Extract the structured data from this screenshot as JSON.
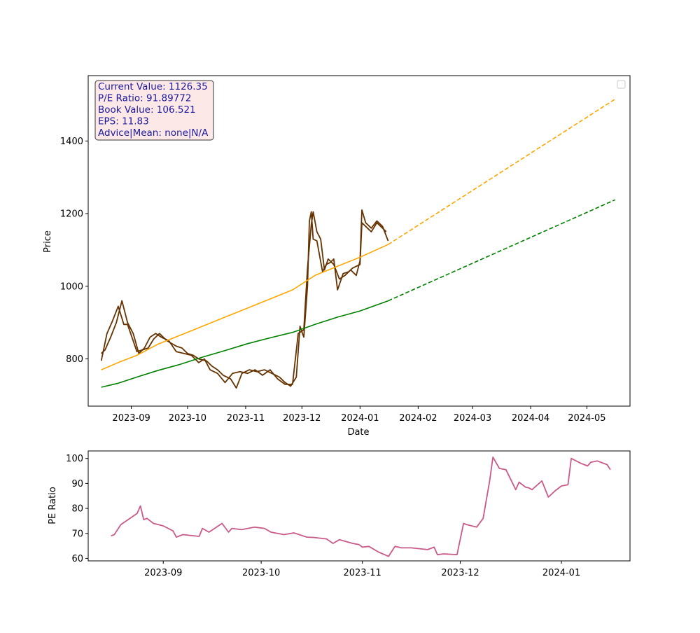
{
  "chart_data": [
    {
      "type": "line",
      "title": "",
      "xlabel": "Date",
      "ylabel": "Price",
      "xlim": [
        "2023-08-09",
        "2024-05-24"
      ],
      "ylim": [
        670,
        1580
      ],
      "grid": false,
      "legend": "top-right",
      "x_tick_labels": [
        "2023-09",
        "2023-10",
        "2023-11",
        "2023-12",
        "2024-01",
        "2024-02",
        "2024-03",
        "2024-04",
        "2024-05"
      ],
      "y_tick_labels": [
        "800",
        "1000",
        "1200",
        "1400"
      ],
      "y_ticks": [
        800,
        1000,
        1200,
        1400
      ],
      "info_box": [
        "Current Value: 1126.35",
        "P/E Ratio: 91.89772",
        "Book Value: 106.521",
        "EPS: 11.83",
        "Advice|Mean: none|N/A"
      ],
      "colors": {
        "price": "#663300",
        "upper_trend": "#ffa500",
        "lower_trend": "#008000",
        "info_box_fill": "#fde8e8",
        "info_box_border": "#333333"
      },
      "series": [
        {
          "key": "price_a",
          "x": [
            "2023-08-16",
            "2023-08-19",
            "2023-08-22",
            "2023-08-25",
            "2023-08-28",
            "2023-08-30",
            "2023-09-01",
            "2023-09-04",
            "2023-09-07",
            "2023-09-10",
            "2023-09-13",
            "2023-09-16",
            "2023-09-20",
            "2023-09-25",
            "2023-09-28",
            "2023-10-01",
            "2023-10-04",
            "2023-10-07",
            "2023-10-11",
            "2023-10-14",
            "2023-10-17",
            "2023-10-20",
            "2023-10-24",
            "2023-10-27",
            "2023-10-30",
            "2023-11-03",
            "2023-11-07",
            "2023-11-11",
            "2023-11-15",
            "2023-11-19",
            "2023-11-22",
            "2023-11-25",
            "2023-11-28",
            "2023-11-30",
            "2023-12-02",
            "2023-12-04",
            "2023-12-05",
            "2023-12-06",
            "2023-12-07",
            "2023-12-09",
            "2023-12-12",
            "2023-12-14",
            "2023-12-16",
            "2023-12-18",
            "2023-12-20",
            "2023-12-23",
            "2023-12-26",
            "2023-12-28",
            "2024-01-01",
            "2024-01-02",
            "2024-01-04",
            "2024-01-07",
            "2024-01-10",
            "2024-01-13",
            "2024-01-15"
          ],
          "y": [
            795,
            870,
            905,
            945,
            895,
            895,
            865,
            820,
            825,
            830,
            855,
            870,
            850,
            835,
            830,
            815,
            810,
            800,
            795,
            780,
            770,
            755,
            745,
            720,
            760,
            770,
            765,
            770,
            760,
            750,
            735,
            725,
            750,
            890,
            860,
            1000,
            1180,
            1205,
            1130,
            1125,
            1040,
            1060,
            1065,
            1075,
            990,
            1035,
            1040,
            1050,
            1060,
            1175,
            1165,
            1150,
            1175,
            1160,
            1150
          ]
        },
        {
          "key": "price_b",
          "x": [
            "2023-08-16",
            "2023-08-18",
            "2023-08-21",
            "2023-08-24",
            "2023-08-27",
            "2023-08-30",
            "2023-09-02",
            "2023-09-05",
            "2023-09-08",
            "2023-09-11",
            "2023-09-14",
            "2023-09-17",
            "2023-09-21",
            "2023-09-25",
            "2023-09-29",
            "2023-10-03",
            "2023-10-07",
            "2023-10-10",
            "2023-10-13",
            "2023-10-17",
            "2023-10-21",
            "2023-10-25",
            "2023-10-29",
            "2023-11-02",
            "2023-11-06",
            "2023-11-10",
            "2023-11-14",
            "2023-11-18",
            "2023-11-22",
            "2023-11-26",
            "2023-11-29",
            "2023-12-02",
            "2023-12-04",
            "2023-12-06",
            "2023-12-07",
            "2023-12-09",
            "2023-12-11",
            "2023-12-13",
            "2023-12-15",
            "2023-12-18",
            "2023-12-21",
            "2023-12-24",
            "2023-12-27",
            "2023-12-30",
            "2024-01-01",
            "2024-01-02",
            "2024-01-04",
            "2024-01-07",
            "2024-01-10",
            "2024-01-13",
            "2024-01-16"
          ],
          "y": [
            815,
            825,
            860,
            900,
            960,
            900,
            870,
            815,
            830,
            860,
            870,
            860,
            850,
            820,
            815,
            810,
            790,
            800,
            770,
            760,
            735,
            760,
            765,
            760,
            770,
            755,
            770,
            745,
            730,
            730,
            870,
            880,
            1050,
            1170,
            1205,
            1150,
            1130,
            1045,
            1075,
            1060,
            1020,
            1030,
            1045,
            1030,
            1070,
            1210,
            1175,
            1160,
            1180,
            1165,
            1125
          ]
        },
        {
          "key": "upper_trend",
          "x": [
            "2023-08-16",
            "2023-08-25",
            "2023-09-04",
            "2023-09-15",
            "2023-09-27",
            "2023-10-09",
            "2023-10-21",
            "2023-11-02",
            "2023-11-14",
            "2023-11-26",
            "2023-12-08",
            "2023-12-20",
            "2024-01-01",
            "2024-01-16"
          ],
          "y": [
            770,
            790,
            810,
            840,
            865,
            890,
            915,
            940,
            965,
            990,
            1030,
            1055,
            1080,
            1115
          ]
        },
        {
          "key": "upper_projection",
          "x": [
            "2024-01-16",
            "2024-05-16"
          ],
          "y": [
            1115,
            1515
          ]
        },
        {
          "key": "lower_trend",
          "x": [
            "2023-08-16",
            "2023-08-25",
            "2023-09-04",
            "2023-09-15",
            "2023-09-27",
            "2023-10-09",
            "2023-10-21",
            "2023-11-02",
            "2023-11-14",
            "2023-11-26",
            "2023-12-08",
            "2023-12-20",
            "2024-01-01",
            "2024-01-16"
          ],
          "y": [
            722,
            733,
            750,
            768,
            785,
            805,
            823,
            842,
            858,
            873,
            895,
            915,
            932,
            960
          ]
        },
        {
          "key": "lower_projection",
          "x": [
            "2024-01-16",
            "2024-05-16"
          ],
          "y": [
            960,
            1238
          ]
        }
      ]
    },
    {
      "type": "line",
      "title": "",
      "xlabel": "",
      "ylabel": "PE Ratio",
      "xlim": [
        "2023-08-09",
        "2024-01-22"
      ],
      "ylim": [
        59,
        103
      ],
      "grid": false,
      "x_tick_labels": [
        "2023-09",
        "2023-10",
        "2023-11",
        "2023-12",
        "2024-01"
      ],
      "y_tick_labels": [
        "60",
        "70",
        "80",
        "90",
        "100"
      ],
      "y_ticks": [
        60,
        70,
        80,
        90,
        100
      ],
      "colors": {
        "line": "#c95a8a"
      },
      "series": [
        {
          "key": "pe_ratio",
          "x": [
            "2023-08-16",
            "2023-08-17",
            "2023-08-19",
            "2023-08-24",
            "2023-08-25",
            "2023-08-26",
            "2023-08-27",
            "2023-08-29",
            "2023-09-01",
            "2023-09-04",
            "2023-09-05",
            "2023-09-07",
            "2023-09-12",
            "2023-09-13",
            "2023-09-15",
            "2023-09-19",
            "2023-09-21",
            "2023-09-22",
            "2023-09-25",
            "2023-09-29",
            "2023-10-02",
            "2023-10-04",
            "2023-10-08",
            "2023-10-11",
            "2023-10-15",
            "2023-10-17",
            "2023-10-21",
            "2023-10-23",
            "2023-10-25",
            "2023-10-29",
            "2023-10-31",
            "2023-11-01",
            "2023-11-03",
            "2023-11-06",
            "2023-11-09",
            "2023-11-11",
            "2023-11-13",
            "2023-11-16",
            "2023-11-21",
            "2023-11-23",
            "2023-11-24",
            "2023-11-26",
            "2023-11-30",
            "2023-12-02",
            "2023-12-03",
            "2023-12-06",
            "2023-12-08",
            "2023-12-10",
            "2023-12-11",
            "2023-12-13",
            "2023-12-15",
            "2023-12-18",
            "2023-12-19",
            "2023-12-21",
            "2023-12-22",
            "2023-12-23",
            "2023-12-26",
            "2023-12-28",
            "2023-12-30",
            "2024-01-01",
            "2024-01-03",
            "2024-01-04",
            "2024-01-07",
            "2024-01-09",
            "2024-01-10",
            "2024-01-12",
            "2024-01-15",
            "2024-01-16"
          ],
          "y": [
            69,
            69.5,
            73.5,
            78,
            81,
            75.5,
            76,
            74,
            73,
            71,
            68.5,
            69.5,
            68.8,
            72,
            70.5,
            74,
            70.5,
            72,
            71.5,
            72.5,
            72,
            70.5,
            69.5,
            70.2,
            68.5,
            68.4,
            67.8,
            66,
            67.5,
            66,
            65.5,
            64.5,
            64.8,
            62.5,
            60.8,
            64.8,
            64.2,
            64.2,
            63.5,
            64.5,
            61.5,
            61.8,
            61.5,
            74,
            73.5,
            72.5,
            76,
            91,
            100.5,
            96,
            95.5,
            87.5,
            90.5,
            88.5,
            88.2,
            87.5,
            91,
            84.5,
            87,
            89,
            89.5,
            100,
            98,
            97,
            98.5,
            99,
            97.5,
            95.5
          ]
        }
      ]
    }
  ]
}
